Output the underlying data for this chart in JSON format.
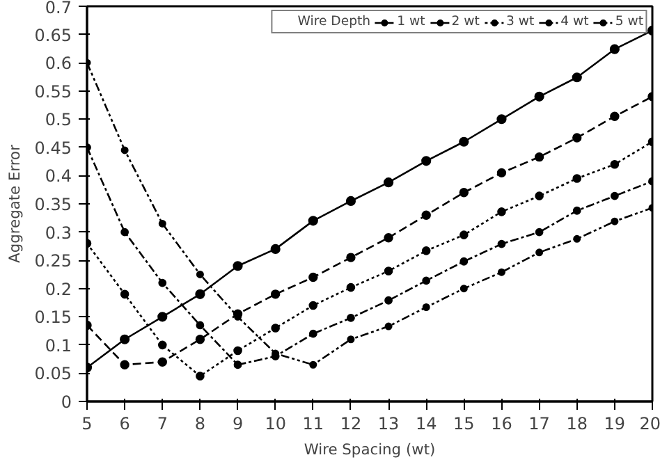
{
  "chart_data": {
    "type": "line",
    "xlabel": "Wire Spacing (wt)",
    "ylabel": "Aggregate Error",
    "legend_title": "Wire Depth",
    "legend": "top right",
    "marker": "circle",
    "grid": false,
    "x": [
      5,
      6,
      7,
      8,
      9,
      10,
      11,
      12,
      13,
      14,
      15,
      16,
      17,
      18,
      19,
      20
    ],
    "xlim": [
      5,
      20
    ],
    "xticks": [
      5,
      6,
      7,
      8,
      9,
      10,
      11,
      12,
      13,
      14,
      15,
      16,
      17,
      18,
      19,
      20
    ],
    "ylim": [
      0,
      0.7
    ],
    "yticks": [
      0,
      0.05,
      0.1,
      0.15,
      0.2,
      0.25,
      0.3,
      0.35,
      0.4,
      0.45,
      0.5,
      0.55,
      0.6,
      0.65,
      0.7
    ],
    "series": [
      {
        "name": "1 wt",
        "color": "#000000",
        "line_style": "solid",
        "values": [
          0.06,
          0.11,
          0.15,
          0.19,
          0.24,
          0.27,
          0.32,
          0.355,
          0.388,
          0.426,
          0.46,
          0.5,
          0.54,
          0.574,
          0.624,
          0.657
        ]
      },
      {
        "name": "2 wt",
        "color": "#000000",
        "line_style": "dashed",
        "values": [
          0.135,
          0.065,
          0.07,
          0.11,
          0.155,
          0.19,
          0.22,
          0.255,
          0.29,
          0.33,
          0.37,
          0.405,
          0.433,
          0.467,
          0.505,
          0.54
        ]
      },
      {
        "name": "3 wt",
        "color": "#000000",
        "line_style": "dotted",
        "values": [
          0.28,
          0.19,
          0.1,
          0.045,
          0.09,
          0.13,
          0.17,
          0.202,
          0.231,
          0.267,
          0.295,
          0.336,
          0.364,
          0.395,
          0.42,
          0.46
        ]
      },
      {
        "name": "4 wt",
        "color": "#000000",
        "line_style": "dashdot",
        "values": [
          0.45,
          0.3,
          0.21,
          0.135,
          0.065,
          0.08,
          0.12,
          0.148,
          0.179,
          0.214,
          0.248,
          0.279,
          0.3,
          0.338,
          0.364,
          0.39
        ]
      },
      {
        "name": "5 wt",
        "color": "#000000",
        "line_style": "dashdotdot",
        "values": [
          0.6,
          0.445,
          0.315,
          0.225,
          0.15,
          0.085,
          0.065,
          0.11,
          0.133,
          0.167,
          0.2,
          0.229,
          0.264,
          0.288,
          0.319,
          0.343
        ]
      }
    ]
  }
}
